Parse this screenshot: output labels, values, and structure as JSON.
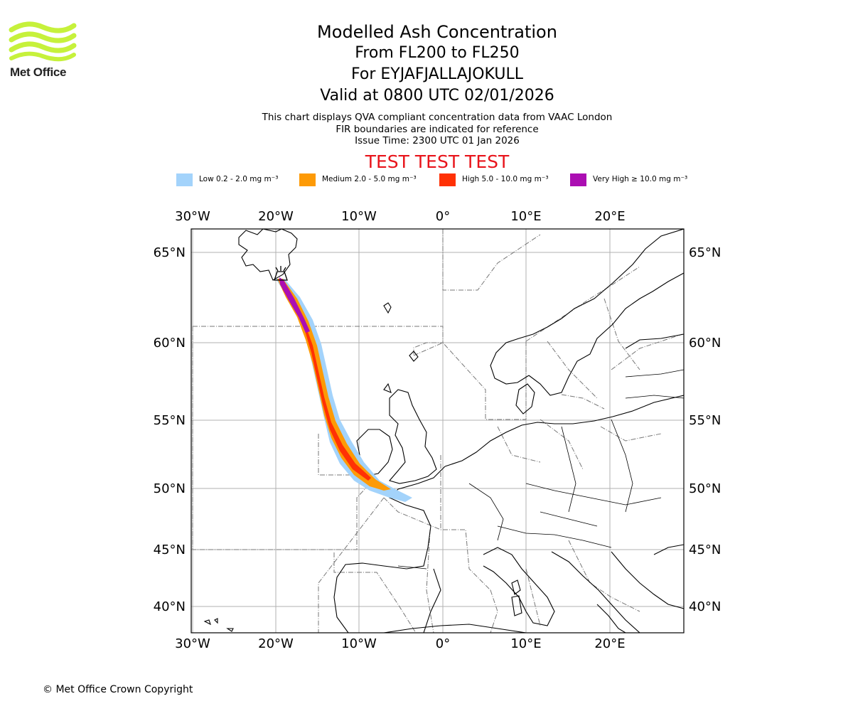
{
  "brand": {
    "name": "Met Office",
    "logo_color": "#c6f13b"
  },
  "header": {
    "title": "Modelled Ash Concentration",
    "levels": "From FL200 to FL250",
    "volcano": "For EYJAFJALLAJOKULL",
    "valid": "Valid at 0800 UTC 02/01/2026",
    "info_line1": "This chart displays QVA compliant concentration data from VAAC London",
    "info_line2": "FIR boundaries are indicated for reference",
    "issue_time": "Issue Time: 2300 UTC 01 Jan 2026",
    "test_banner": "TEST TEST TEST",
    "test_color": "#e8141b"
  },
  "legend": [
    {
      "label": "Low 0.2 - 2.0 mg m⁻³",
      "color": "#a3d3fb"
    },
    {
      "label": "Medium 2.0 - 5.0 mg m⁻³",
      "color": "#fd9a06"
    },
    {
      "label": "High 5.0 - 10.0 mg m⁻³",
      "color": "#ff3105"
    },
    {
      "label": "Very High ≥ 10.0 mg m⁻³",
      "color": "#ab0eb2"
    }
  ],
  "map": {
    "lon_labels": [
      "30°W",
      "20°W",
      "10°W",
      "0°",
      "10°E",
      "20°E"
    ],
    "lat_labels": [
      "65°N",
      "60°N",
      "55°N",
      "50°N",
      "45°N",
      "40°N"
    ],
    "gridline_color": "#b0b0b0",
    "coast_color": "#000000",
    "fir_color": "#777777"
  },
  "footer": {
    "copyright": "© Met Office Crown Copyright"
  }
}
